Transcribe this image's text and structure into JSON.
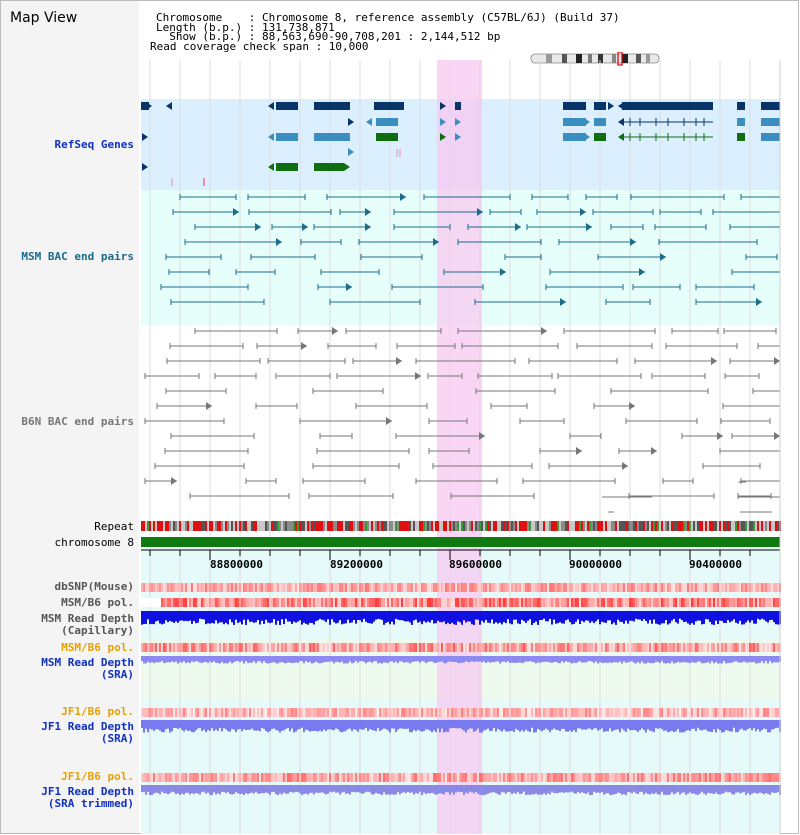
{
  "header": {
    "title": "Map View",
    "chromosome_line": "Chromosome    : Chromosome 8, reference assembly (C57BL/6J) (Build 37)",
    "length_line": "Length (b.p.) : 131,738,871",
    "show_line": "  Show (b.p.) : 88,563,690-90,708,201 : 2,144,512 bp",
    "coverage_line": "Read coverage check span : 10,000"
  },
  "tracks": {
    "refseq": "RefSeq Genes",
    "msm_bac": "MSM BAC end pairs",
    "b6n_bac": "B6N BAC end pairs",
    "repeat": "Repeat",
    "chromosome": "chromosome 8",
    "dbsnp": "dbSNP(Mouse)",
    "msm_b6_pol": "MSM/B6 pol.",
    "msm_depth_cap": "MSM Read Depth\n(Capillary)",
    "msm_b6_pol_sra": "MSM/B6 pol.",
    "msm_depth_sra": "MSM Read Depth\n(SRA)",
    "jf1_b6_pol": "JF1/B6 pol.",
    "jf1_depth_sra": "JF1 Read Depth\n(SRA)",
    "jf1_b6_pol_trim": "JF1/B6 pol.",
    "jf1_depth_trim": "JF1 Read Depth\n(SRA trimmed)"
  },
  "axis": {
    "ticks": [
      "88800000",
      "89200000",
      "89600000",
      "90000000",
      "90400000"
    ]
  },
  "colors": {
    "refseq_bg": "#dcefff",
    "msm_bg": "#e6fffb",
    "highlight": "#f7c9f0",
    "gene_dark": "#083468",
    "gene_mid": "#3a8fc0",
    "gene_green": "#0f6e0f",
    "msm_line": "#1c6c8c",
    "b6n_line": "#777777",
    "label_blue": "#1030c0",
    "label_teal": "#1a6a8a",
    "label_orange": "#e8a000"
  }
}
